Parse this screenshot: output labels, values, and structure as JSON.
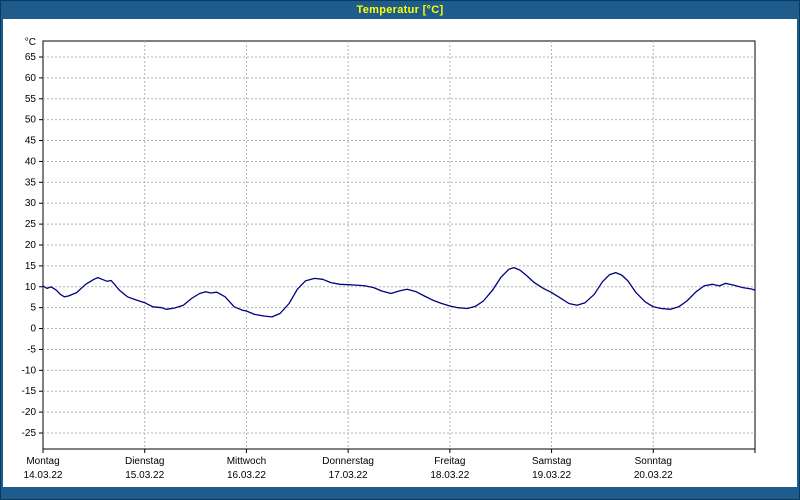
{
  "window": {
    "title": "Temperatur [°C]"
  },
  "theme": {
    "frame_color": "#1d5c8d",
    "title_text_color": "#ffff00",
    "plot_bg": "#ffffff",
    "grid_color": "#b4b4b4",
    "axis_color": "#000000",
    "line_color": "#000080"
  },
  "chart_data": {
    "type": "line",
    "title": "Temperatur [°C]",
    "ylabel": "°C",
    "xlabel": "",
    "ylim": [
      -25,
      65
    ],
    "ytick_step": 5,
    "yticks": [
      65,
      60,
      55,
      50,
      45,
      40,
      35,
      30,
      25,
      20,
      15,
      10,
      5,
      0,
      -5,
      -10,
      -15,
      -20,
      -25
    ],
    "grid": "dashed",
    "legend_position": "none",
    "x_axis": {
      "x_range_days": [
        0,
        7
      ],
      "days": [
        {
          "name": "Montag",
          "date": "14.03.22"
        },
        {
          "name": "Dienstag",
          "date": "15.03.22"
        },
        {
          "name": "Mittwoch",
          "date": "16.03.22"
        },
        {
          "name": "Donnerstag",
          "date": "17.03.22"
        },
        {
          "name": "Freitag",
          "date": "18.03.22"
        },
        {
          "name": "Samstag",
          "date": "19.03.22"
        },
        {
          "name": "Sonntag",
          "date": "20.03.22"
        }
      ]
    },
    "series": [
      {
        "name": "Temperatur",
        "color": "#000080",
        "points_day_temp": [
          [
            0.0,
            10.2
          ],
          [
            0.04,
            9.6
          ],
          [
            0.08,
            10.0
          ],
          [
            0.13,
            9.2
          ],
          [
            0.17,
            8.2
          ],
          [
            0.21,
            7.6
          ],
          [
            0.25,
            7.8
          ],
          [
            0.33,
            8.6
          ],
          [
            0.42,
            10.6
          ],
          [
            0.5,
            11.8
          ],
          [
            0.54,
            12.2
          ],
          [
            0.58,
            11.8
          ],
          [
            0.63,
            11.3
          ],
          [
            0.67,
            11.5
          ],
          [
            0.71,
            10.4
          ],
          [
            0.75,
            9.2
          ],
          [
            0.83,
            7.6
          ],
          [
            0.92,
            6.8
          ],
          [
            1.0,
            6.2
          ],
          [
            1.08,
            5.2
          ],
          [
            1.17,
            5.0
          ],
          [
            1.21,
            4.6
          ],
          [
            1.29,
            4.9
          ],
          [
            1.38,
            5.6
          ],
          [
            1.46,
            7.2
          ],
          [
            1.54,
            8.4
          ],
          [
            1.6,
            8.8
          ],
          [
            1.65,
            8.5
          ],
          [
            1.71,
            8.7
          ],
          [
            1.79,
            7.6
          ],
          [
            1.88,
            5.2
          ],
          [
            1.96,
            4.4
          ],
          [
            2.0,
            4.2
          ],
          [
            2.08,
            3.4
          ],
          [
            2.17,
            3.0
          ],
          [
            2.25,
            2.8
          ],
          [
            2.33,
            3.6
          ],
          [
            2.42,
            6.0
          ],
          [
            2.5,
            9.4
          ],
          [
            2.58,
            11.4
          ],
          [
            2.67,
            12.0
          ],
          [
            2.75,
            11.8
          ],
          [
            2.83,
            11.0
          ],
          [
            2.92,
            10.6
          ],
          [
            3.0,
            10.5
          ],
          [
            3.08,
            10.4
          ],
          [
            3.17,
            10.2
          ],
          [
            3.25,
            9.8
          ],
          [
            3.33,
            9.0
          ],
          [
            3.42,
            8.4
          ],
          [
            3.5,
            9.0
          ],
          [
            3.58,
            9.4
          ],
          [
            3.67,
            8.8
          ],
          [
            3.75,
            7.8
          ],
          [
            3.83,
            6.8
          ],
          [
            3.92,
            6.0
          ],
          [
            4.0,
            5.4
          ],
          [
            4.08,
            5.0
          ],
          [
            4.17,
            4.8
          ],
          [
            4.25,
            5.3
          ],
          [
            4.33,
            6.6
          ],
          [
            4.42,
            9.2
          ],
          [
            4.5,
            12.2
          ],
          [
            4.58,
            14.2
          ],
          [
            4.63,
            14.6
          ],
          [
            4.69,
            14.0
          ],
          [
            4.75,
            12.8
          ],
          [
            4.83,
            11.0
          ],
          [
            4.92,
            9.6
          ],
          [
            5.0,
            8.6
          ],
          [
            5.08,
            7.4
          ],
          [
            5.17,
            6.0
          ],
          [
            5.25,
            5.6
          ],
          [
            5.33,
            6.2
          ],
          [
            5.42,
            8.2
          ],
          [
            5.5,
            11.2
          ],
          [
            5.57,
            12.9
          ],
          [
            5.63,
            13.4
          ],
          [
            5.69,
            12.8
          ],
          [
            5.75,
            11.4
          ],
          [
            5.83,
            8.6
          ],
          [
            5.92,
            6.4
          ],
          [
            6.0,
            5.2
          ],
          [
            6.08,
            4.8
          ],
          [
            6.17,
            4.6
          ],
          [
            6.25,
            5.2
          ],
          [
            6.33,
            6.6
          ],
          [
            6.42,
            8.8
          ],
          [
            6.5,
            10.2
          ],
          [
            6.58,
            10.6
          ],
          [
            6.65,
            10.2
          ],
          [
            6.71,
            10.8
          ],
          [
            6.79,
            10.4
          ],
          [
            6.88,
            9.8
          ],
          [
            6.96,
            9.5
          ],
          [
            7.0,
            9.2
          ]
        ]
      }
    ]
  }
}
